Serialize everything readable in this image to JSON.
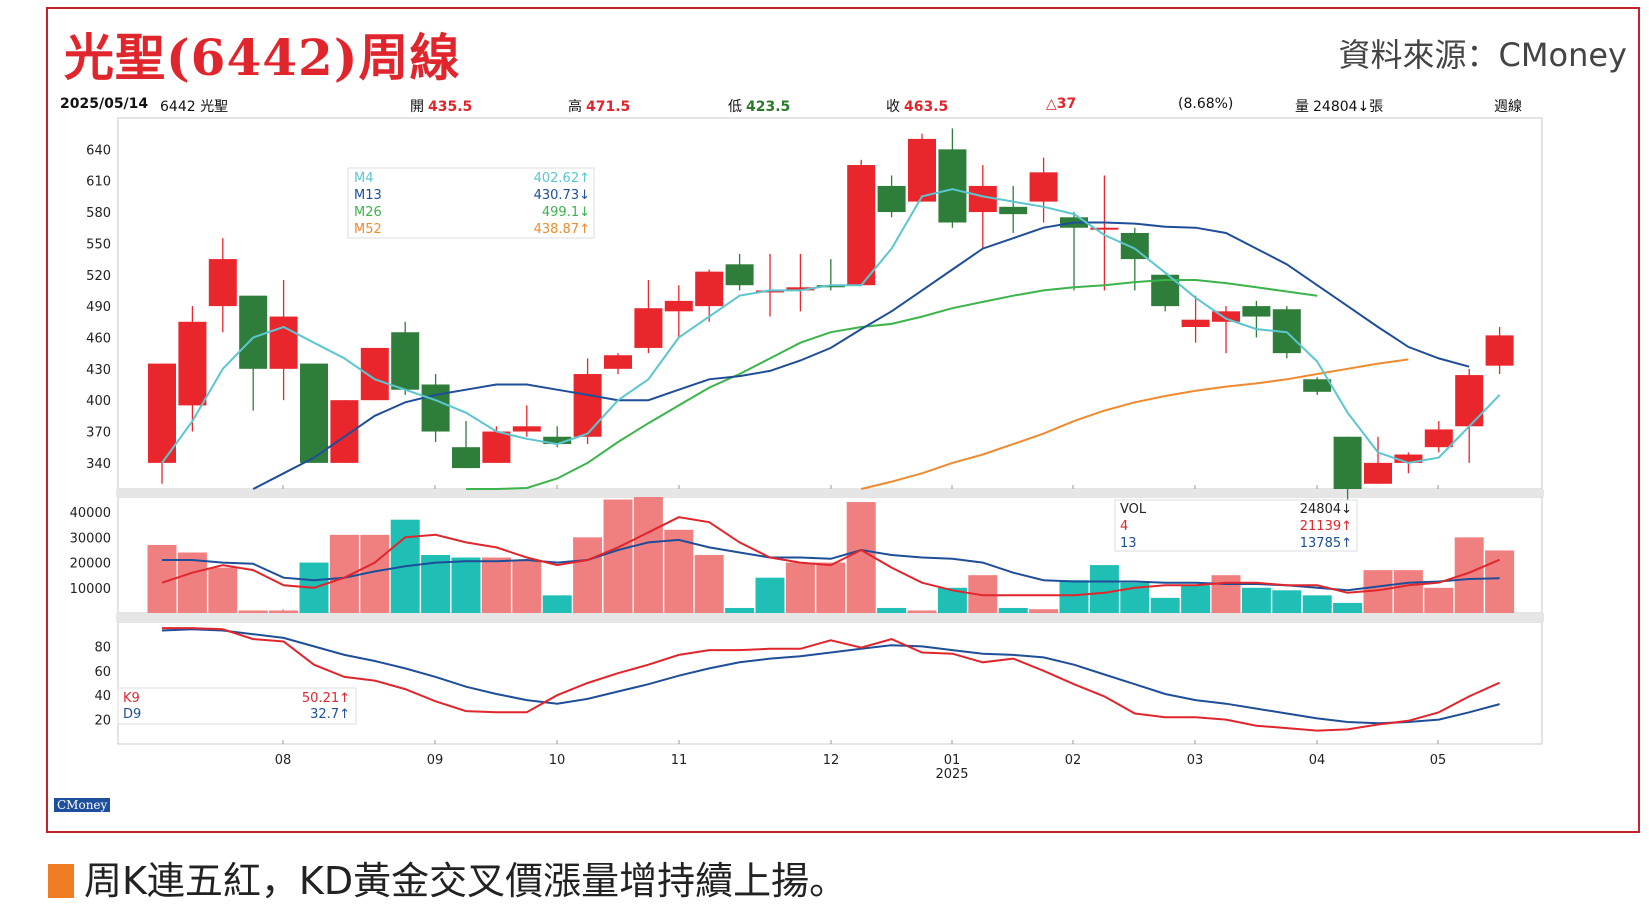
{
  "title": "光聖(6442)周線",
  "source": "資料來源：CMoney",
  "caption": "周K連五紅，KD黃金交叉價漲量增持續上揚。",
  "badge": "CMoney",
  "info": {
    "date": "2025/05/14",
    "stock": "6442 光聖",
    "open_label": "開",
    "open": "435.5",
    "high_label": "高",
    "high": "471.5",
    "low_label": "低",
    "low": "423.5",
    "close_label": "收",
    "close": "463.5",
    "change": "△37",
    "change_pct": "(8.68%)",
    "volume_label": "量",
    "volume": "24804↓張",
    "period": "週線"
  },
  "colors": {
    "up": "#e8262c",
    "down": "#2e7d3a",
    "vol_up": "#f08080",
    "vol_down": "#1fbfb5",
    "m4": "#5bc6d0",
    "m13": "#1f4e99",
    "m26": "#3cb44b",
    "m52": "#f08a30",
    "k": "#e0262c",
    "d": "#1f4e99"
  },
  "chart_data": [
    {
      "type": "candlestick",
      "ylim": [
        315,
        670
      ],
      "y_ticks": [
        "640",
        "610",
        "580",
        "550",
        "520",
        "490",
        "460",
        "430",
        "400",
        "370",
        "340"
      ],
      "x_ticks": [
        "08",
        "09",
        "10",
        "11",
        "12",
        "01",
        "02",
        "03",
        "04",
        "05"
      ],
      "x_year": "2025",
      "legend": [
        {
          "name": "M4",
          "value": "402.62↑"
        },
        {
          "name": "M13",
          "value": "430.73↓"
        },
        {
          "name": "M26",
          "value": "499.1↓"
        },
        {
          "name": "M52",
          "value": "438.87↑"
        }
      ],
      "candles": [
        {
          "o": 340,
          "h": 435,
          "l": 320,
          "c": 435
        },
        {
          "o": 395,
          "h": 490,
          "l": 370,
          "c": 475
        },
        {
          "o": 490,
          "h": 555,
          "l": 465,
          "c": 535
        },
        {
          "o": 500,
          "h": 500,
          "l": 390,
          "c": 430
        },
        {
          "o": 430,
          "h": 515,
          "l": 400,
          "c": 480
        },
        {
          "o": 435,
          "h": 435,
          "l": 340,
          "c": 340
        },
        {
          "o": 340,
          "h": 400,
          "l": 340,
          "c": 400
        },
        {
          "o": 400,
          "h": 450,
          "l": 400,
          "c": 450
        },
        {
          "o": 465,
          "h": 475,
          "l": 405,
          "c": 410
        },
        {
          "o": 415,
          "h": 425,
          "l": 360,
          "c": 370
        },
        {
          "o": 355,
          "h": 380,
          "l": 335,
          "c": 335
        },
        {
          "o": 340,
          "h": 375,
          "l": 340,
          "c": 370
        },
        {
          "o": 370,
          "h": 395,
          "l": 365,
          "c": 375
        },
        {
          "o": 365,
          "h": 375,
          "l": 355,
          "c": 358
        },
        {
          "o": 365,
          "h": 440,
          "l": 358,
          "c": 425
        },
        {
          "o": 430,
          "h": 445,
          "l": 425,
          "c": 443
        },
        {
          "o": 450,
          "h": 515,
          "l": 445,
          "c": 488
        },
        {
          "o": 485,
          "h": 510,
          "l": 460,
          "c": 495
        },
        {
          "o": 490,
          "h": 525,
          "l": 475,
          "c": 523
        },
        {
          "o": 530,
          "h": 540,
          "l": 505,
          "c": 510
        },
        {
          "o": 505,
          "h": 540,
          "l": 480,
          "c": 505
        },
        {
          "o": 505,
          "h": 540,
          "l": 485,
          "c": 508
        },
        {
          "o": 510,
          "h": 535,
          "l": 505,
          "c": 508
        },
        {
          "o": 510,
          "h": 630,
          "l": 510,
          "c": 625
        },
        {
          "o": 605,
          "h": 615,
          "l": 575,
          "c": 580
        },
        {
          "o": 590,
          "h": 655,
          "l": 590,
          "c": 650
        },
        {
          "o": 640,
          "h": 660,
          "l": 565,
          "c": 570
        },
        {
          "o": 580,
          "h": 625,
          "l": 545,
          "c": 605
        },
        {
          "o": 585,
          "h": 605,
          "l": 560,
          "c": 578
        },
        {
          "o": 590,
          "h": 632,
          "l": 570,
          "c": 618
        },
        {
          "o": 575,
          "h": 580,
          "l": 505,
          "c": 565
        },
        {
          "o": 565,
          "h": 615,
          "l": 505,
          "c": 565
        },
        {
          "o": 560,
          "h": 565,
          "l": 505,
          "c": 535
        },
        {
          "o": 520,
          "h": 520,
          "l": 485,
          "c": 490
        },
        {
          "o": 470,
          "h": 500,
          "l": 455,
          "c": 477
        },
        {
          "o": 475,
          "h": 490,
          "l": 445,
          "c": 485
        },
        {
          "o": 490,
          "h": 495,
          "l": 460,
          "c": 480
        },
        {
          "o": 487,
          "h": 490,
          "l": 440,
          "c": 445
        },
        {
          "o": 420,
          "h": 422,
          "l": 405,
          "c": 408
        },
        {
          "o": 365,
          "h": 365,
          "l": 295,
          "c": 315
        },
        {
          "o": 320,
          "h": 365,
          "l": 320,
          "c": 340
        },
        {
          "o": 340,
          "h": 350,
          "l": 330,
          "c": 348
        },
        {
          "o": 355,
          "h": 380,
          "l": 350,
          "c": 372
        },
        {
          "o": 375,
          "h": 430,
          "l": 340,
          "c": 424
        },
        {
          "o": 433,
          "h": 470,
          "l": 425,
          "c": 462
        }
      ],
      "ma": {
        "m4": [
          340,
          380,
          430,
          460,
          470,
          455,
          440,
          420,
          410,
          400,
          388,
          370,
          363,
          358,
          368,
          400,
          420,
          460,
          480,
          500,
          505,
          505,
          510,
          510,
          545,
          595,
          602,
          595,
          590,
          585,
          578,
          558,
          545,
          522,
          498,
          478,
          468,
          465,
          437,
          388,
          350,
          340,
          345,
          375,
          405
        ],
        "m13": [
          null,
          null,
          null,
          315,
          330,
          345,
          365,
          385,
          398,
          405,
          410,
          415,
          415,
          410,
          405,
          400,
          400,
          410,
          420,
          423,
          428,
          438,
          450,
          468,
          485,
          505,
          525,
          545,
          555,
          565,
          570,
          570,
          569,
          566,
          565,
          560,
          545,
          530,
          510,
          490,
          470,
          451,
          440,
          432
        ],
        "m26": [
          null,
          null,
          null,
          null,
          null,
          null,
          null,
          null,
          null,
          null,
          300,
          308,
          316,
          325,
          340,
          360,
          378,
          395,
          412,
          425,
          440,
          455,
          465,
          470,
          473,
          480,
          488,
          494,
          500,
          505,
          508,
          510,
          513,
          515,
          515,
          512,
          508,
          504,
          500
        ],
        "m52": [
          null,
          null,
          null,
          null,
          null,
          null,
          null,
          null,
          null,
          null,
          null,
          null,
          null,
          null,
          null,
          null,
          null,
          null,
          null,
          null,
          null,
          null,
          null,
          315,
          322,
          330,
          340,
          348,
          358,
          368,
          380,
          390,
          398,
          404,
          409,
          413,
          416,
          420,
          425,
          430,
          435,
          439
        ]
      }
    },
    {
      "type": "bar",
      "ylim": [
        0,
        46000
      ],
      "y_ticks": [
        "40000",
        "30000",
        "20000",
        "10000"
      ],
      "legend": [
        {
          "name": "VOL",
          "value": "24804↓"
        },
        {
          "name": "4",
          "value": "21139↑"
        },
        {
          "name": "13",
          "value": "13785↑"
        }
      ],
      "values": [
        27000,
        24000,
        18000,
        1000,
        1000,
        20000,
        31000,
        31000,
        37000,
        23000,
        22000,
        22000,
        21000,
        7000,
        30000,
        45000,
        46000,
        33000,
        23000,
        2000,
        14000,
        20000,
        20000,
        44000,
        2000,
        1000,
        10000,
        15000,
        2000,
        1500,
        13000,
        19000,
        12000,
        6000,
        11000,
        15000,
        10000,
        9000,
        7000,
        4000,
        17000,
        17000,
        10000,
        30000,
        24804
      ],
      "up": [
        1,
        1,
        1,
        1,
        1,
        0,
        1,
        1,
        0,
        0,
        0,
        1,
        1,
        0,
        1,
        1,
        1,
        1,
        1,
        0,
        0,
        1,
        1,
        1,
        0,
        1,
        0,
        1,
        0,
        1,
        0,
        0,
        0,
        0,
        0,
        1,
        0,
        0,
        0,
        0,
        1,
        1,
        1,
        1,
        1
      ],
      "ma4": [
        12000,
        16000,
        19000,
        17000,
        11000,
        10000,
        14000,
        20000,
        30000,
        31000,
        28000,
        26000,
        22000,
        19000,
        21000,
        26000,
        32000,
        38000,
        36000,
        28000,
        22000,
        20000,
        19000,
        25000,
        18000,
        12000,
        9000,
        7000,
        7000,
        7000,
        7000,
        8000,
        10000,
        11000,
        11000,
        12000,
        12000,
        11000,
        11000,
        8000,
        9000,
        11000,
        12000,
        16000,
        21139
      ],
      "ma13": [
        21000,
        21000,
        20000,
        19500,
        14000,
        13000,
        14000,
        16500,
        18500,
        20000,
        20500,
        20500,
        21000,
        20000,
        21000,
        25000,
        28000,
        29000,
        26000,
        24000,
        22000,
        22000,
        21500,
        25000,
        23000,
        22000,
        21500,
        20000,
        16000,
        13000,
        12500,
        12500,
        12500,
        12000,
        12000,
        11500,
        11500,
        11000,
        10000,
        9000,
        10500,
        12000,
        12500,
        13500,
        13785
      ]
    },
    {
      "type": "line",
      "ylim": [
        0,
        100
      ],
      "y_ticks": [
        "80",
        "60",
        "40",
        "20"
      ],
      "legend": [
        {
          "name": "K9",
          "value": "50.21↑"
        },
        {
          "name": "D9",
          "value": "32.7↑"
        }
      ],
      "k": [
        95,
        95,
        94,
        86,
        84,
        65,
        55,
        52,
        45,
        35,
        27,
        26,
        26,
        40,
        50,
        58,
        65,
        73,
        77,
        77,
        78,
        78,
        85,
        79,
        86,
        75,
        74,
        67,
        70,
        60,
        49,
        39,
        25,
        22,
        22,
        20,
        15,
        13,
        11,
        12,
        16,
        19,
        26,
        39,
        50.21
      ],
      "d": [
        93,
        94,
        93,
        90,
        87,
        80,
        73,
        68,
        62,
        55,
        47,
        41,
        36,
        33,
        37,
        43,
        49,
        56,
        62,
        67,
        70,
        72,
        75,
        78,
        81,
        80,
        77,
        74,
        73,
        71,
        65,
        57,
        49,
        41,
        36,
        33,
        29,
        25,
        21,
        18,
        17,
        18,
        20,
        26,
        32.7
      ]
    }
  ]
}
